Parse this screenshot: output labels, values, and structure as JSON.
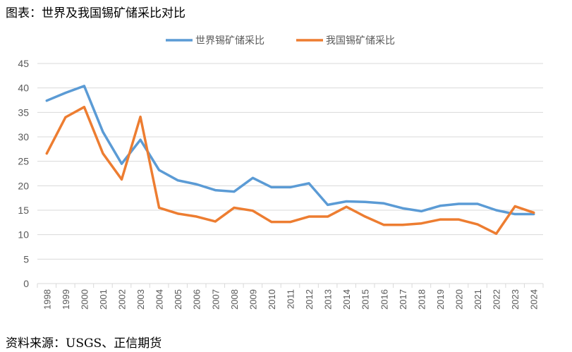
{
  "header": {
    "title": "图表：世界及我国锡矿储采比对比"
  },
  "footer": {
    "source": "资料来源：USGS、正信期货"
  },
  "chart_data": {
    "type": "line",
    "title": "图表：世界及我国锡矿储采比对比",
    "xlabel": "",
    "ylabel": "",
    "ylim": [
      0,
      45
    ],
    "yticks": [
      0,
      5,
      10,
      15,
      20,
      25,
      30,
      35,
      40,
      45
    ],
    "grid": true,
    "legend_position": "top-center",
    "categories": [
      "1998",
      "1999",
      "2000",
      "2001",
      "2002",
      "2003",
      "2004",
      "2005",
      "2006",
      "2007",
      "2008",
      "2009",
      "2010",
      "2011",
      "2012",
      "2013",
      "2014",
      "2015",
      "2016",
      "2017",
      "2018",
      "2019",
      "2020",
      "2021",
      "2022",
      "2023",
      "2024"
    ],
    "series": [
      {
        "name": "世界锡矿储采比",
        "color": "#5B9BD5",
        "values": [
          37.4,
          39.0,
          40.4,
          31.0,
          24.5,
          29.4,
          23.2,
          21.1,
          20.3,
          19.1,
          18.8,
          21.6,
          19.7,
          19.7,
          20.5,
          16.1,
          16.8,
          16.7,
          16.4,
          15.4,
          14.8,
          15.9,
          16.3,
          16.3,
          15.0,
          14.2,
          14.2
        ]
      },
      {
        "name": "我国锡矿储采比",
        "color": "#ED7D31",
        "values": [
          26.6,
          34.0,
          36.1,
          26.6,
          21.3,
          34.1,
          15.5,
          14.3,
          13.7,
          12.7,
          15.5,
          14.9,
          12.6,
          12.6,
          13.7,
          13.7,
          15.7,
          13.7,
          12.0,
          12.0,
          12.3,
          13.1,
          13.1,
          12.1,
          10.2,
          15.8,
          14.5
        ]
      }
    ]
  }
}
